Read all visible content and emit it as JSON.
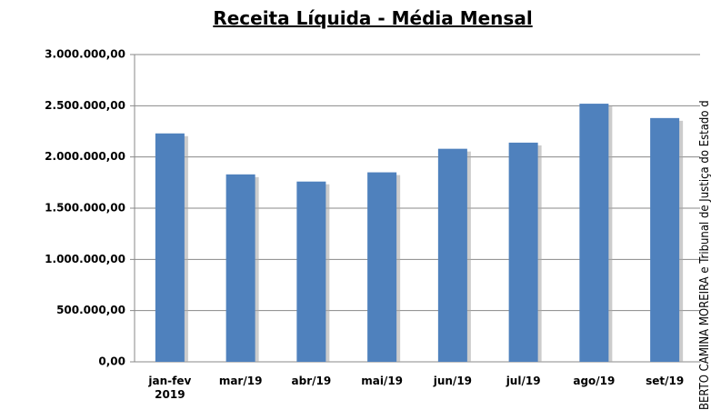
{
  "chart_data": {
    "type": "bar",
    "title": "Receita Líquida - Média Mensal",
    "categories": [
      "jan-fev 2019",
      "mar/19",
      "abr/19",
      "mai/19",
      "jun/19",
      "jul/19",
      "ago/19",
      "set/19"
    ],
    "values": [
      2230000,
      1830000,
      1760000,
      1850000,
      2080000,
      2140000,
      2520000,
      2380000
    ],
    "color": "#4f81bd",
    "ylim": [
      0,
      3000000
    ],
    "yticks": [
      {
        "value": 0,
        "label": "0,00"
      },
      {
        "value": 500000,
        "label": "500.000,00"
      },
      {
        "value": 1000000,
        "label": "1.000.000,00"
      },
      {
        "value": 1500000,
        "label": "1.500.000,00"
      },
      {
        "value": 2000000,
        "label": "2.000.000,00"
      },
      {
        "value": 2500000,
        "label": "2.500.000,00"
      },
      {
        "value": 3000000,
        "label": "3.000.000,00"
      }
    ],
    "grid": true,
    "annotation": "BERTO CAMINA MOREIRA e Tribunal de Justiça do Estado d"
  }
}
